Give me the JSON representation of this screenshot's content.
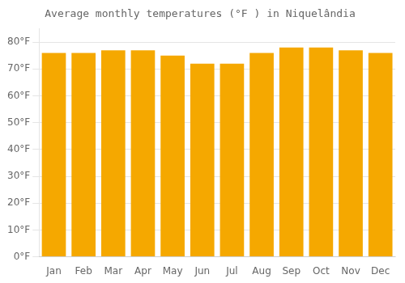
{
  "chart_data": {
    "type": "bar",
    "title": "Average monthly temperatures (°F ) in Niquelândia",
    "categories": [
      "Jan",
      "Feb",
      "Mar",
      "Apr",
      "May",
      "Jun",
      "Jul",
      "Aug",
      "Sep",
      "Oct",
      "Nov",
      "Dec"
    ],
    "values": [
      76,
      76,
      77,
      77,
      75,
      72,
      72,
      76,
      78,
      78,
      77,
      76
    ],
    "color": "#F5A800",
    "ylim": [
      0,
      85
    ],
    "yticks": [
      {
        "value": 0,
        "label": "0°F"
      },
      {
        "value": 10,
        "label": "10°F"
      },
      {
        "value": 20,
        "label": "20°F"
      },
      {
        "value": 30,
        "label": "30°F"
      },
      {
        "value": 40,
        "label": "40°F"
      },
      {
        "value": 50,
        "label": "50°F"
      },
      {
        "value": 60,
        "label": "60°F"
      },
      {
        "value": 70,
        "label": "70°F"
      },
      {
        "value": 80,
        "label": "80°F"
      }
    ],
    "grid": true
  }
}
